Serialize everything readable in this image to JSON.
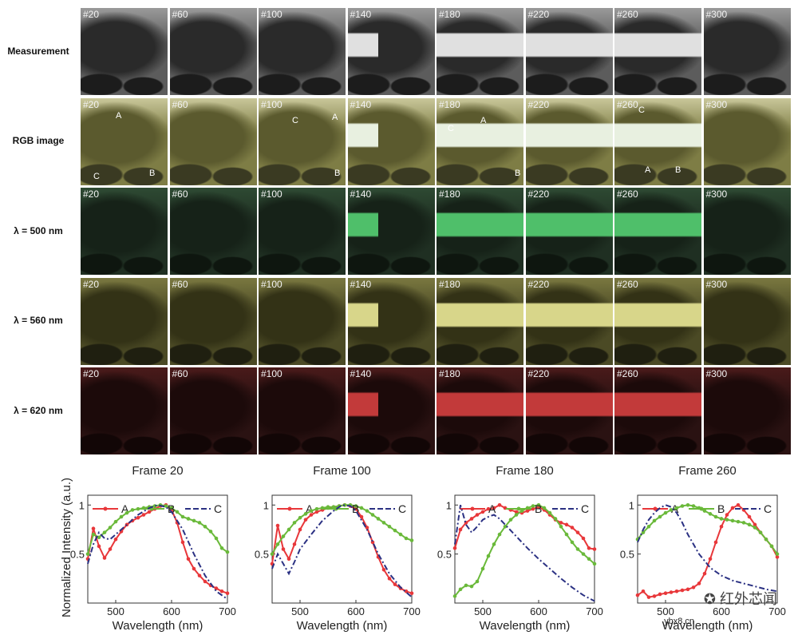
{
  "grid": {
    "rows": [
      {
        "id": "measurement",
        "label": "Measurement",
        "bg": "#5c5c5c",
        "sky": "#9a9a9a",
        "tree": "#2a2a2a",
        "car": "#1c1c1c",
        "bus": "#e0e0e0"
      },
      {
        "id": "rgb",
        "label": "RGB image",
        "bg": "#7e7d45",
        "sky": "#c9c79a",
        "tree": "#5b5a2e",
        "car": "#3a3a22",
        "bus": "#e8f0e0"
      },
      {
        "id": "l500",
        "label": "λ = 500 nm",
        "bg": "#1f2f22",
        "sky": "#2e4a33",
        "tree": "#162218",
        "car": "#0e160f",
        "bus": "#4fbf6a"
      },
      {
        "id": "l560",
        "label": "λ = 560 nm",
        "bg": "#4b4a25",
        "sky": "#7a7840",
        "tree": "#333216",
        "car": "#1f1f10",
        "bus": "#d8d68a"
      },
      {
        "id": "l620",
        "label": "λ = 620 nm",
        "bg": "#2a1212",
        "sky": "#4a1a1a",
        "tree": "#1c0a0a",
        "car": "#120606",
        "bus": "#c23a3a"
      }
    ],
    "frames": [
      "#20",
      "#60",
      "#100",
      "#140",
      "#180",
      "#220",
      "#260",
      "#300"
    ],
    "markers": [
      {
        "row": 1,
        "col": 0,
        "text": "A"
      },
      {
        "row": 1,
        "col": 0,
        "text": "C"
      },
      {
        "row": 1,
        "col": 0,
        "text": "B"
      },
      {
        "row": 1,
        "col": 2,
        "text": "C"
      },
      {
        "row": 1,
        "col": 2,
        "text": "A"
      },
      {
        "row": 1,
        "col": 2,
        "text": "B"
      },
      {
        "row": 1,
        "col": 4,
        "text": "C"
      },
      {
        "row": 1,
        "col": 4,
        "text": "A"
      },
      {
        "row": 1,
        "col": 4,
        "text": "B"
      },
      {
        "row": 1,
        "col": 6,
        "text": "C"
      },
      {
        "row": 1,
        "col": 6,
        "text": "A"
      },
      {
        "row": 1,
        "col": 6,
        "text": "B"
      }
    ]
  },
  "chart_data": [
    {
      "type": "line",
      "title": "Frame 20",
      "xlabel": "Wavelength (nm)",
      "ylabel": "Normalized Intensity (a.u.)",
      "xlim": [
        450,
        700
      ],
      "ylim": [
        0,
        1.1
      ],
      "xticks": [
        500,
        600,
        700
      ],
      "yticks": [
        0.5,
        1
      ],
      "series": [
        {
          "name": "A",
          "color": "#e8373a",
          "style": "solid",
          "marker": true,
          "x": [
            450,
            460,
            470,
            480,
            490,
            500,
            510,
            520,
            530,
            540,
            550,
            560,
            570,
            580,
            590,
            600,
            610,
            620,
            630,
            640,
            650,
            660,
            670,
            680,
            690,
            700
          ],
          "y": [
            0.45,
            0.76,
            0.58,
            0.46,
            0.55,
            0.65,
            0.73,
            0.8,
            0.84,
            0.87,
            0.9,
            0.93,
            0.96,
            0.99,
            1.0,
            0.95,
            0.82,
            0.62,
            0.45,
            0.35,
            0.28,
            0.22,
            0.18,
            0.15,
            0.12,
            0.1
          ]
        },
        {
          "name": "B",
          "color": "#6ab93a",
          "style": "solid",
          "marker": true,
          "x": [
            450,
            460,
            470,
            480,
            490,
            500,
            510,
            520,
            530,
            540,
            550,
            560,
            570,
            580,
            590,
            600,
            610,
            620,
            630,
            640,
            650,
            660,
            670,
            680,
            690,
            700
          ],
          "y": [
            0.5,
            0.7,
            0.67,
            0.72,
            0.77,
            0.83,
            0.88,
            0.92,
            0.95,
            0.96,
            0.97,
            0.98,
            0.99,
            1.0,
            0.99,
            0.97,
            0.93,
            0.88,
            0.86,
            0.84,
            0.82,
            0.78,
            0.73,
            0.66,
            0.56,
            0.52
          ]
        },
        {
          "name": "C",
          "color": "#2b3183",
          "style": "dash",
          "x": [
            450,
            460,
            470,
            480,
            490,
            500,
            520,
            540,
            560,
            575,
            590,
            600,
            620,
            640,
            660,
            680,
            700
          ],
          "y": [
            0.4,
            0.6,
            0.72,
            0.66,
            0.65,
            0.7,
            0.8,
            0.9,
            0.97,
            1.0,
            0.98,
            0.93,
            0.75,
            0.5,
            0.28,
            0.12,
            0.04
          ]
        }
      ]
    },
    {
      "type": "line",
      "title": "Frame 100",
      "xlabel": "Wavelength (nm)",
      "ylabel": "",
      "xlim": [
        450,
        700
      ],
      "ylim": [
        0,
        1.1
      ],
      "xticks": [
        500,
        600,
        700
      ],
      "yticks": [
        0.5,
        1
      ],
      "series": [
        {
          "name": "A",
          "color": "#e8373a",
          "style": "solid",
          "marker": true,
          "x": [
            450,
            460,
            470,
            480,
            490,
            500,
            510,
            520,
            530,
            540,
            550,
            560,
            570,
            580,
            590,
            600,
            610,
            620,
            630,
            640,
            650,
            660,
            670,
            680,
            690,
            700
          ],
          "y": [
            0.4,
            0.79,
            0.55,
            0.45,
            0.6,
            0.75,
            0.85,
            0.9,
            0.93,
            0.95,
            0.97,
            0.98,
            0.99,
            1.0,
            0.99,
            0.96,
            0.88,
            0.77,
            0.62,
            0.47,
            0.34,
            0.25,
            0.19,
            0.15,
            0.12,
            0.1
          ]
        },
        {
          "name": "B",
          "color": "#6ab93a",
          "style": "solid",
          "marker": true,
          "x": [
            450,
            460,
            470,
            480,
            490,
            500,
            510,
            520,
            530,
            540,
            550,
            560,
            570,
            580,
            590,
            600,
            610,
            620,
            630,
            640,
            650,
            660,
            670,
            680,
            690,
            700
          ],
          "y": [
            0.5,
            0.6,
            0.68,
            0.75,
            0.82,
            0.87,
            0.91,
            0.94,
            0.96,
            0.97,
            0.98,
            0.98,
            0.99,
            1.0,
            1.0,
            0.99,
            0.97,
            0.94,
            0.9,
            0.86,
            0.82,
            0.78,
            0.74,
            0.7,
            0.66,
            0.64
          ]
        },
        {
          "name": "C",
          "color": "#2b3183",
          "style": "dash",
          "x": [
            450,
            460,
            470,
            480,
            490,
            500,
            520,
            540,
            560,
            575,
            590,
            600,
            620,
            640,
            660,
            680,
            700
          ],
          "y": [
            0.35,
            0.5,
            0.4,
            0.3,
            0.42,
            0.55,
            0.7,
            0.84,
            0.94,
            1.0,
            0.99,
            0.94,
            0.75,
            0.5,
            0.3,
            0.16,
            0.06
          ]
        }
      ]
    },
    {
      "type": "line",
      "title": "Frame 180",
      "xlabel": "Wavelength (nm)",
      "ylabel": "",
      "xlim": [
        450,
        700
      ],
      "ylim": [
        0,
        1.1
      ],
      "xticks": [
        500,
        600,
        700
      ],
      "yticks": [
        0.5,
        1
      ],
      "series": [
        {
          "name": "A",
          "color": "#e8373a",
          "style": "solid",
          "marker": true,
          "x": [
            450,
            460,
            470,
            480,
            490,
            500,
            510,
            520,
            530,
            540,
            550,
            560,
            570,
            580,
            590,
            600,
            610,
            620,
            630,
            640,
            650,
            660,
            670,
            680,
            690,
            700
          ],
          "y": [
            0.56,
            0.75,
            0.82,
            0.86,
            0.9,
            0.93,
            0.96,
            0.97,
            1.0,
            0.97,
            0.95,
            0.93,
            0.92,
            0.94,
            0.96,
            0.98,
            0.95,
            0.9,
            0.85,
            0.82,
            0.8,
            0.77,
            0.72,
            0.66,
            0.56,
            0.55
          ]
        },
        {
          "name": "B",
          "color": "#6ab93a",
          "style": "solid",
          "marker": true,
          "x": [
            450,
            460,
            470,
            480,
            490,
            500,
            510,
            520,
            530,
            540,
            550,
            560,
            570,
            580,
            590,
            600,
            610,
            620,
            630,
            640,
            650,
            660,
            670,
            680,
            690,
            700
          ],
          "y": [
            0.07,
            0.14,
            0.18,
            0.17,
            0.22,
            0.35,
            0.48,
            0.6,
            0.7,
            0.78,
            0.85,
            0.9,
            0.94,
            0.97,
            0.99,
            1.0,
            0.97,
            0.92,
            0.86,
            0.78,
            0.7,
            0.62,
            0.55,
            0.5,
            0.45,
            0.4
          ]
        },
        {
          "name": "C",
          "color": "#2b3183",
          "style": "dash",
          "x": [
            450,
            460,
            470,
            480,
            490,
            500,
            510,
            520,
            530,
            540,
            560,
            580,
            600,
            620,
            640,
            660,
            680,
            700
          ],
          "y": [
            0.6,
            1.0,
            0.8,
            0.72,
            0.78,
            0.85,
            0.88,
            0.9,
            0.86,
            0.8,
            0.68,
            0.56,
            0.45,
            0.35,
            0.25,
            0.16,
            0.08,
            0.02
          ]
        }
      ]
    },
    {
      "type": "line",
      "title": "Frame 260",
      "xlabel": "Wavelength (nm)",
      "ylabel": "",
      "xlim": [
        450,
        700
      ],
      "ylim": [
        0,
        1.1
      ],
      "xticks": [
        500,
        600,
        700
      ],
      "yticks": [
        0.5,
        1
      ],
      "series": [
        {
          "name": "A",
          "color": "#e8373a",
          "style": "solid",
          "marker": true,
          "x": [
            450,
            460,
            470,
            480,
            490,
            500,
            510,
            520,
            530,
            540,
            550,
            560,
            570,
            580,
            590,
            600,
            610,
            620,
            630,
            640,
            650,
            660,
            670,
            680,
            690,
            700
          ],
          "y": [
            0.08,
            0.12,
            0.06,
            0.07,
            0.09,
            0.1,
            0.11,
            0.12,
            0.13,
            0.14,
            0.16,
            0.2,
            0.3,
            0.45,
            0.62,
            0.78,
            0.9,
            0.97,
            1.0,
            0.95,
            0.88,
            0.8,
            0.72,
            0.65,
            0.58,
            0.47
          ]
        },
        {
          "name": "B",
          "color": "#6ab93a",
          "style": "solid",
          "marker": true,
          "x": [
            450,
            460,
            470,
            480,
            490,
            500,
            510,
            520,
            530,
            540,
            550,
            560,
            570,
            580,
            590,
            600,
            610,
            620,
            630,
            640,
            650,
            660,
            670,
            680,
            690,
            700
          ],
          "y": [
            0.65,
            0.72,
            0.78,
            0.84,
            0.88,
            0.92,
            0.95,
            0.97,
            0.99,
            1.0,
            0.99,
            0.97,
            0.94,
            0.91,
            0.88,
            0.86,
            0.85,
            0.84,
            0.83,
            0.82,
            0.8,
            0.77,
            0.72,
            0.65,
            0.58,
            0.5
          ]
        },
        {
          "name": "C",
          "color": "#2b3183",
          "style": "dash",
          "x": [
            450,
            460,
            470,
            480,
            490,
            500,
            510,
            520,
            530,
            540,
            560,
            580,
            600,
            620,
            640,
            660,
            680,
            700
          ],
          "y": [
            0.62,
            0.75,
            0.85,
            0.92,
            0.97,
            1.0,
            0.98,
            0.92,
            0.82,
            0.7,
            0.5,
            0.36,
            0.28,
            0.23,
            0.2,
            0.17,
            0.14,
            0.12
          ]
        }
      ]
    }
  ],
  "watermark": {
    "text": "红外芯闻",
    "url": "ybx8.cn"
  }
}
